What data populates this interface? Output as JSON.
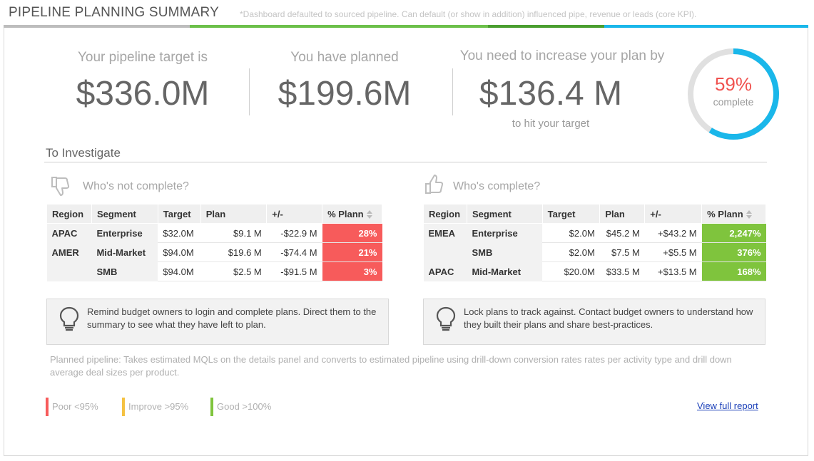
{
  "header": {
    "title": "PIPELINE PLANNING SUMMARY",
    "note": "*Dashboard defaulted to sourced pipeline. Can default (or show in addition) influenced pipe, revenue or leads (core KPI).",
    "bar_colors": [
      "#bdbdbd",
      "#6cc04a",
      "#4a9e2f",
      "#1ab7ea"
    ]
  },
  "kpis": {
    "target": {
      "label": "Your pipeline target is",
      "value": "$336.0M"
    },
    "planned": {
      "label": "You have planned",
      "value": "$199.6M"
    },
    "increase": {
      "label": "You need to increase your plan by",
      "value": "$136.4 M",
      "sub": "to hit your target"
    }
  },
  "gauge": {
    "percent": "59%",
    "label": "complete",
    "fraction": 0.59,
    "ring_color": "#1ab7ea",
    "track_color": "#e0e0e0",
    "pct_color": "#f0524f"
  },
  "investigate": {
    "title": "To Investigate",
    "not_complete": {
      "title": "Who's not complete?",
      "icon": "thumbs-down-icon",
      "headers": [
        "Region",
        "Segment",
        "Target",
        "Plan",
        "+/-",
        "% Plann"
      ],
      "rows": [
        {
          "region": "APAC",
          "segment": "Enterprise",
          "target": "$32.0M",
          "plan": "$9.1 M",
          "diff": "-$22.9 M",
          "pct": "28%"
        },
        {
          "region": "AMER",
          "segment": "Mid-Market",
          "target": "$94.0M",
          "plan": "$19.6 M",
          "diff": "-$74.4 M",
          "pct": "21%"
        },
        {
          "region": "",
          "segment": "SMB",
          "target": "$94.0M",
          "plan": "$2.5 M",
          "diff": "-$91.5 M",
          "pct": "3%"
        }
      ],
      "tip": "Remind budget owners to login and complete plans. Direct them to the summary to see what they have left to plan."
    },
    "complete": {
      "title": "Who's complete?",
      "icon": "thumbs-up-icon",
      "headers": [
        "Region",
        "Segment",
        "Target",
        "Plan",
        "+/-",
        "% Plann"
      ],
      "rows": [
        {
          "region": "EMEA",
          "segment": "Enterprise",
          "target": "$2.0M",
          "plan": "$45.2 M",
          "diff": "+$43.2 M",
          "pct": "2,247%"
        },
        {
          "region": "",
          "segment": "SMB",
          "target": "$2.0M",
          "plan": "$7.5 M",
          "diff": "+$5.5 M",
          "pct": "376%"
        },
        {
          "region": "APAC",
          "segment": "Mid-Market",
          "target": "$20.0M",
          "plan": "$33.5 M",
          "diff": "+$13.5 M",
          "pct": "168%"
        }
      ],
      "tip": "Lock plans to track against. Contact budget owners to understand how they built their plans and share best-practices."
    }
  },
  "footnote": "Planned pipeline: Takes estimated MQLs on the details panel and converts to estimated pipeline using drill-down conversion rates rates per activity type and drill down average deal sizes per product.",
  "legend": [
    {
      "label": "Poor <95%",
      "color": "#f75b5b"
    },
    {
      "label": "Improve >95%",
      "color": "#f5c242"
    },
    {
      "label": "Good >100%",
      "color": "#7fc43d"
    }
  ],
  "report_link": "View full report"
}
